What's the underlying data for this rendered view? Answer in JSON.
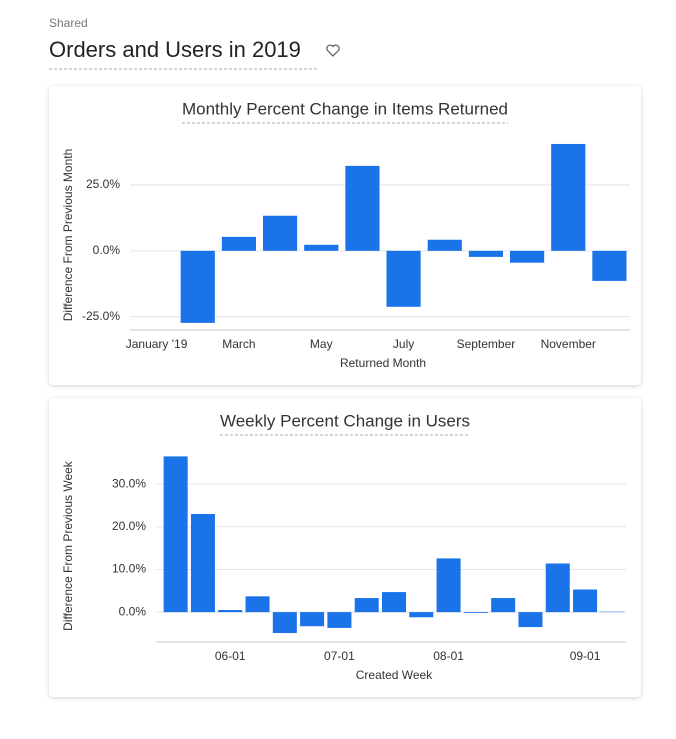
{
  "header": {
    "folder": "Shared",
    "title": "Orders and Users in 2019"
  },
  "chart_data": [
    {
      "type": "bar",
      "title": "Monthly Percent Change in Items Returned",
      "x_label": "Returned Month",
      "y_label": "Difference From Previous Month",
      "categories": [
        "January '19",
        null,
        "March",
        null,
        "May",
        null,
        "July",
        null,
        "September",
        null,
        "November",
        null
      ],
      "values": [
        null,
        -27.3,
        5.3,
        13.3,
        2.3,
        32.2,
        -21.2,
        4.2,
        -2.3,
        -4.5,
        40.5,
        -11.4
      ],
      "color": "#1a73e8",
      "ylim": [
        -30,
        42
      ],
      "yticks": [
        {
          "value": -25,
          "label": "-25.0%"
        },
        {
          "value": 0,
          "label": "0.0%"
        },
        {
          "value": 25,
          "label": "25.0%"
        }
      ],
      "grid": true
    },
    {
      "type": "bar",
      "title": "Weekly Percent Change in Users",
      "x_label": "Created Week",
      "y_label": "Difference From Previous Week",
      "categories": [
        null,
        null,
        "06-01",
        null,
        null,
        null,
        "07-01",
        null,
        null,
        null,
        "08-01",
        null,
        null,
        null,
        null,
        "09-01",
        null
      ],
      "values": [
        36.5,
        23,
        0.5,
        3.7,
        -4.9,
        -3.3,
        -3.7,
        3.3,
        4.7,
        -1.2,
        12.6,
        -0.2,
        3.3,
        -3.5,
        11.4,
        5.3,
        0.1
      ],
      "color": "#1a73e8",
      "ylim": [
        -7,
        38
      ],
      "yticks": [
        {
          "value": 0,
          "label": "0.0%"
        },
        {
          "value": 10,
          "label": "10.0%"
        },
        {
          "value": 20,
          "label": "20.0%"
        },
        {
          "value": 30,
          "label": "30.0%"
        }
      ],
      "grid": true
    }
  ]
}
